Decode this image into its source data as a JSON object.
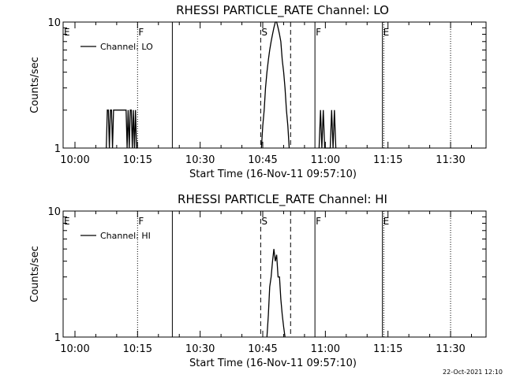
{
  "chart_data": [
    {
      "type": "line",
      "title": "RHESSI PARTICLE_RATE Channel: LO",
      "xlabel": "Start Time (16-Nov-11 09:57:10)",
      "ylabel": "Counts/sec",
      "y_scale": "log",
      "ylim": [
        1,
        10
      ],
      "y_ticks": [
        "1",
        "10"
      ],
      "xlim": [
        "09:57:10",
        "11:38:30"
      ],
      "x_ticks": [
        "10:00",
        "10:15",
        "10:30",
        "10:45",
        "11:00",
        "11:15",
        "11:30"
      ],
      "legend": {
        "placement": "top-left",
        "entries": [
          "Channel: LO"
        ]
      },
      "series": [
        {
          "name": "Channel: LO",
          "color": "#000000",
          "x": [
            "10:07:30",
            "10:07:45",
            "10:08:00",
            "10:08:15",
            "10:08:30",
            "10:08:45",
            "10:09:00",
            "10:09:15",
            "10:09:30",
            "10:09:45",
            "10:10:00",
            "10:10:15",
            "10:10:30",
            "10:10:45",
            "10:11:00",
            "10:11:15",
            "10:11:30",
            "10:11:45",
            "10:12:00",
            "10:12:15",
            "10:12:30",
            "10:12:45",
            "10:13:00",
            "10:13:15",
            "10:13:30",
            "10:13:45",
            "10:14:00",
            "10:14:15",
            "10:14:30",
            "10:14:45",
            "10:15:00"
          ],
          "y": [
            1,
            2,
            2,
            1,
            2,
            2,
            1,
            2,
            2,
            2,
            2,
            2,
            2,
            2,
            2,
            2,
            2,
            2,
            2,
            2,
            1,
            2,
            1,
            2,
            2,
            1,
            2,
            1,
            2,
            1,
            1
          ]
        },
        {
          "name": "Channel: LO",
          "color": "#000000",
          "x": [
            "10:44:40",
            "10:45:00",
            "10:45:20",
            "10:45:40",
            "10:46:00",
            "10:46:20",
            "10:46:40",
            "10:47:00",
            "10:47:20",
            "10:47:40",
            "10:48:00",
            "10:48:20",
            "10:48:40",
            "10:49:00",
            "10:49:20",
            "10:49:40",
            "10:50:00",
            "10:50:20",
            "10:50:40",
            "10:51:00",
            "10:51:20"
          ],
          "y": [
            1,
            1.5,
            2,
            3,
            4,
            5,
            6,
            7,
            8,
            9,
            10,
            10,
            9,
            8,
            7,
            5,
            4,
            3,
            2,
            1.5,
            1
          ]
        },
        {
          "name": "Channel: LO",
          "color": "#000000",
          "x": [
            "10:58:30",
            "10:58:50",
            "10:59:10",
            "10:59:30",
            "10:59:50",
            "11:00:10",
            "11:00:30",
            "11:00:50",
            "11:01:10",
            "11:01:30",
            "11:01:50",
            "11:02:10",
            "11:02:30"
          ],
          "y": [
            1,
            2,
            1,
            2,
            1,
            1,
            1,
            1,
            1,
            2,
            1,
            2,
            1
          ]
        }
      ],
      "markers": [
        {
          "label": "E",
          "time": "09:57:10",
          "style": "solid"
        },
        {
          "label": "F",
          "time": "10:15:00",
          "style": "dotted"
        },
        {
          "label": "",
          "time": "10:23:20",
          "style": "solid"
        },
        {
          "label": "S",
          "time": "10:44:30",
          "style": "dashed"
        },
        {
          "label": "",
          "time": "10:51:40",
          "style": "dashed"
        },
        {
          "label": "F",
          "time": "10:57:30",
          "style": "solid"
        },
        {
          "label": "E",
          "time": "11:13:40",
          "style": "solid"
        },
        {
          "label": "",
          "time": "11:14:00",
          "style": "dotted"
        },
        {
          "label": "",
          "time": "11:30:00",
          "style": "dotted"
        }
      ]
    },
    {
      "type": "line",
      "title": "RHESSI PARTICLE_RATE Channel: HI",
      "xlabel": "Start Time (16-Nov-11 09:57:10)",
      "ylabel": "Counts/sec",
      "y_scale": "log",
      "ylim": [
        1,
        10
      ],
      "y_ticks": [
        "1",
        "10"
      ],
      "xlim": [
        "09:57:10",
        "11:38:30"
      ],
      "x_ticks": [
        "10:00",
        "10:15",
        "10:30",
        "10:45",
        "11:00",
        "11:15",
        "11:30"
      ],
      "legend": {
        "placement": "top-left",
        "entries": [
          "Channel: HI"
        ]
      },
      "series": [
        {
          "name": "Channel: HI",
          "color": "#000000",
          "x": [
            "10:46:00",
            "10:46:20",
            "10:46:40",
            "10:47:00",
            "10:47:20",
            "10:47:40",
            "10:48:00",
            "10:48:20",
            "10:48:40",
            "10:49:00",
            "10:49:20",
            "10:49:40",
            "10:50:00",
            "10:50:20"
          ],
          "y": [
            1,
            1.5,
            2.5,
            3,
            4,
            5,
            4,
            4.5,
            3,
            3,
            2,
            1.5,
            1.2,
            1
          ]
        }
      ],
      "markers": [
        {
          "label": "E",
          "time": "09:57:10",
          "style": "solid"
        },
        {
          "label": "F",
          "time": "10:15:00",
          "style": "dotted"
        },
        {
          "label": "",
          "time": "10:23:20",
          "style": "solid"
        },
        {
          "label": "S",
          "time": "10:44:30",
          "style": "dashed"
        },
        {
          "label": "",
          "time": "10:51:40",
          "style": "dashed"
        },
        {
          "label": "F",
          "time": "10:57:30",
          "style": "solid"
        },
        {
          "label": "E",
          "time": "11:13:40",
          "style": "solid"
        },
        {
          "label": "",
          "time": "11:14:00",
          "style": "dotted"
        },
        {
          "label": "",
          "time": "11:30:00",
          "style": "dotted"
        }
      ]
    }
  ],
  "footer": {
    "generated_text": "22-Oct-2021 12:10"
  }
}
